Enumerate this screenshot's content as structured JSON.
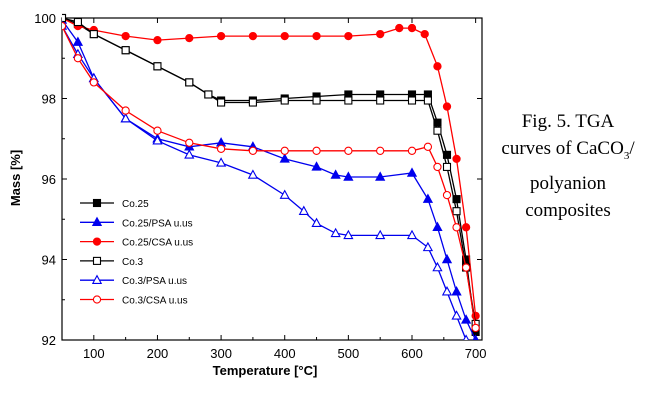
{
  "chart_data": {
    "type": "line",
    "xlabel": "Temperature [°C]",
    "ylabel": "Mass [%]",
    "xlim": [
      50,
      710
    ],
    "ylim": [
      92,
      100
    ],
    "xticks": [
      "100",
      "200",
      "300",
      "400",
      "500",
      "600",
      "700"
    ],
    "xtick_values": [
      100,
      200,
      300,
      400,
      500,
      600,
      700
    ],
    "yticks": [
      "92",
      "94",
      "96",
      "98",
      "100"
    ],
    "ytick_values": [
      92,
      94,
      96,
      98,
      100
    ],
    "grid": false,
    "legend_position": "lower-left",
    "series": [
      {
        "name": "Co.25",
        "color": "#000000",
        "marker": "square",
        "filled": true,
        "x": [
          50,
          75,
          100,
          150,
          200,
          250,
          280,
          300,
          350,
          400,
          450,
          500,
          550,
          600,
          625,
          640,
          655,
          670,
          685,
          700
        ],
        "y": [
          100.0,
          99.85,
          99.6,
          99.2,
          98.8,
          98.4,
          98.1,
          97.95,
          97.95,
          98.0,
          98.05,
          98.1,
          98.1,
          98.1,
          98.1,
          97.4,
          96.6,
          95.5,
          94.0,
          92.2
        ]
      },
      {
        "name": "Co.25/PSA u.us",
        "color": "#0000ee",
        "marker": "triangle",
        "filled": true,
        "x": [
          50,
          75,
          100,
          150,
          200,
          250,
          300,
          350,
          400,
          450,
          480,
          500,
          550,
          600,
          625,
          640,
          655,
          670,
          685,
          700
        ],
        "y": [
          99.95,
          99.4,
          98.5,
          97.5,
          97.0,
          96.8,
          96.9,
          96.8,
          96.5,
          96.3,
          96.1,
          96.05,
          96.05,
          96.15,
          95.5,
          94.8,
          94.0,
          93.2,
          92.5,
          92.0
        ]
      },
      {
        "name": "Co.25/CSA u.us",
        "color": "#ff0000",
        "marker": "circle",
        "filled": true,
        "x": [
          50,
          75,
          100,
          150,
          200,
          250,
          300,
          350,
          400,
          450,
          500,
          550,
          580,
          600,
          620,
          640,
          655,
          670,
          685,
          700
        ],
        "y": [
          100.0,
          99.8,
          99.7,
          99.55,
          99.45,
          99.5,
          99.55,
          99.55,
          99.55,
          99.55,
          99.55,
          99.6,
          99.75,
          99.75,
          99.6,
          98.8,
          97.8,
          96.5,
          94.8,
          92.6
        ]
      },
      {
        "name": "Co.3",
        "color": "#000000",
        "marker": "square",
        "filled": false,
        "x": [
          50,
          75,
          100,
          150,
          200,
          250,
          280,
          300,
          350,
          400,
          450,
          500,
          550,
          600,
          625,
          640,
          655,
          670,
          685,
          700
        ],
        "y": [
          100.0,
          99.9,
          99.6,
          99.2,
          98.8,
          98.4,
          98.1,
          97.9,
          97.9,
          97.95,
          97.95,
          97.95,
          97.95,
          97.95,
          97.95,
          97.2,
          96.3,
          95.2,
          93.8,
          92.4
        ]
      },
      {
        "name": "Co.3/PSA u.us",
        "color": "#0000ee",
        "marker": "triangle",
        "filled": false,
        "x": [
          50,
          75,
          100,
          150,
          200,
          250,
          300,
          350,
          400,
          430,
          450,
          480,
          500,
          550,
          600,
          625,
          640,
          655,
          670,
          685
        ],
        "y": [
          99.8,
          99.1,
          98.5,
          97.5,
          96.95,
          96.6,
          96.4,
          96.1,
          95.6,
          95.2,
          94.9,
          94.65,
          94.6,
          94.6,
          94.6,
          94.3,
          93.8,
          93.2,
          92.6,
          92.0
        ]
      },
      {
        "name": "Co.3/CSA u.us",
        "color": "#ff0000",
        "marker": "circle",
        "filled": false,
        "x": [
          50,
          75,
          100,
          150,
          200,
          250,
          300,
          350,
          400,
          450,
          500,
          550,
          600,
          625,
          640,
          655,
          670,
          685,
          700
        ],
        "y": [
          99.8,
          99.0,
          98.4,
          97.7,
          97.2,
          96.9,
          96.75,
          96.7,
          96.7,
          96.7,
          96.7,
          96.7,
          96.7,
          96.8,
          96.3,
          95.6,
          94.8,
          93.8,
          92.3
        ]
      }
    ]
  },
  "caption": {
    "line1": "Fig. 5. TGA",
    "line2a": "curves of CaCO",
    "line2sub": "3",
    "line2b": "/",
    "line3": "polyanion",
    "line4": "composites"
  }
}
